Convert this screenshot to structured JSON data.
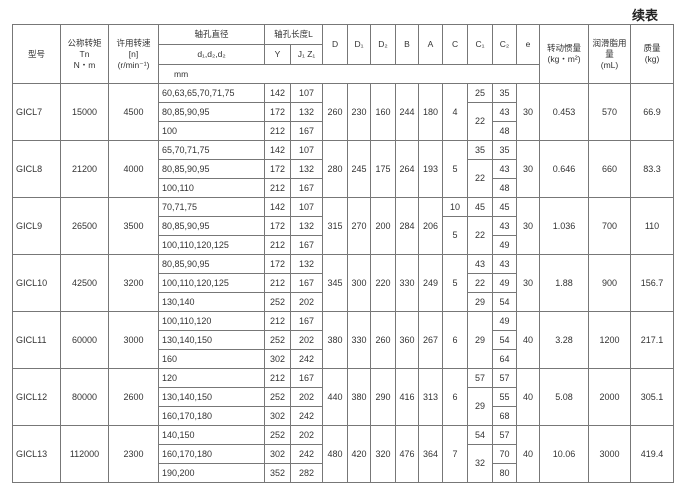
{
  "caption": "续表",
  "header": {
    "model": "型号",
    "torque": [
      "公称转矩",
      "Tn",
      "N・m"
    ],
    "speed": [
      "许用转速",
      "[n]",
      "(r/min⁻¹)"
    ],
    "bore_diameter": "轴孔直径",
    "bore_diameter_sub": "d₁,d₂,d₂",
    "bore_length": "轴孔长度L",
    "bore_length_y": "Y",
    "bore_length_jz": "J₁ Z₁",
    "dims": [
      "D",
      "D₁",
      "D₂",
      "B",
      "A",
      "C",
      "C₁",
      "C₂",
      "e"
    ],
    "unit_mm": "mm",
    "inertia": [
      "转动惯量",
      "(kg・m²)"
    ],
    "grease": [
      "润滑脂用量",
      "(mL)"
    ],
    "mass": [
      "质量",
      "(kg)"
    ]
  },
  "rows": [
    {
      "model": "GⅠCL7",
      "torque": "15000",
      "speed": "4500",
      "bores": [
        "60,63,65,70,71,75",
        "80,85,90,95",
        "100"
      ],
      "Y": [
        "142",
        "172",
        "212"
      ],
      "JZ": [
        "107",
        "132",
        "167"
      ],
      "D": "260",
      "D1": "230",
      "D2": "160",
      "B": "244",
      "A": "180",
      "C": [
        "4"
      ],
      "C1": [
        "25",
        "22"
      ],
      "C2": [
        "35",
        "43",
        "48"
      ],
      "e": "30",
      "inertia": "0.453",
      "grease": "570",
      "mass": "66.9"
    },
    {
      "model": "GⅠCL8",
      "torque": "21200",
      "speed": "4000",
      "bores": [
        "65,70,71,75",
        "80,85,90,95",
        "100,110"
      ],
      "Y": [
        "142",
        "172",
        "212"
      ],
      "JZ": [
        "107",
        "132",
        "167"
      ],
      "D": "280",
      "D1": "245",
      "D2": "175",
      "B": "264",
      "A": "193",
      "C": [
        "5"
      ],
      "C1": [
        "35",
        "22"
      ],
      "C2": [
        "35",
        "43",
        "48"
      ],
      "e": "30",
      "inertia": "0.646",
      "grease": "660",
      "mass": "83.3"
    },
    {
      "model": "GⅠCL9",
      "torque": "26500",
      "speed": "3500",
      "bores": [
        "70,71,75",
        "80,85,90,95",
        "100,110,120,125"
      ],
      "Y": [
        "142",
        "172",
        "212"
      ],
      "JZ": [
        "107",
        "132",
        "167"
      ],
      "D": "315",
      "D1": "270",
      "D2": "200",
      "B": "284",
      "A": "206",
      "C": [
        "10",
        "5"
      ],
      "C1": [
        "45",
        "22"
      ],
      "C2": [
        "45",
        "43",
        "49"
      ],
      "e": "30",
      "inertia": "1.036",
      "grease": "700",
      "mass": "110"
    },
    {
      "model": "GⅠCL10",
      "torque": "42500",
      "speed": "3200",
      "bores": [
        "80,85,90,95",
        "100,110,120,125",
        "130,140"
      ],
      "Y": [
        "172",
        "212",
        "252"
      ],
      "JZ": [
        "132",
        "167",
        "202"
      ],
      "D": "345",
      "D1": "300",
      "D2": "220",
      "B": "330",
      "A": "249",
      "C": [
        "5"
      ],
      "C1": [
        "43",
        "22",
        "29"
      ],
      "C2": [
        "43",
        "49",
        "54"
      ],
      "e": "30",
      "inertia": "1.88",
      "grease": "900",
      "mass": "156.7"
    },
    {
      "model": "GⅠCL11",
      "torque": "60000",
      "speed": "3000",
      "bores": [
        "100,110,120",
        "130,140,150",
        "160"
      ],
      "Y": [
        "212",
        "252",
        "302"
      ],
      "JZ": [
        "167",
        "202",
        "242"
      ],
      "D": "380",
      "D1": "330",
      "D2": "260",
      "B": "360",
      "A": "267",
      "C": [
        "6"
      ],
      "C1": [
        "29"
      ],
      "C2": [
        "49",
        "54",
        "64"
      ],
      "e": "40",
      "inertia": "3.28",
      "grease": "1200",
      "mass": "217.1"
    },
    {
      "model": "GⅠCL12",
      "torque": "80000",
      "speed": "2600",
      "bores": [
        "120",
        "130,140,150",
        "160,170,180"
      ],
      "Y": [
        "212",
        "252",
        "302"
      ],
      "JZ": [
        "167",
        "202",
        "242"
      ],
      "D": "440",
      "D1": "380",
      "D2": "290",
      "B": "416",
      "A": "313",
      "C": [
        "6"
      ],
      "C1": [
        "57",
        "29"
      ],
      "C2": [
        "57",
        "55",
        "68"
      ],
      "e": "40",
      "inertia": "5.08",
      "grease": "2000",
      "mass": "305.1"
    },
    {
      "model": "GⅠCL13",
      "torque": "112000",
      "speed": "2300",
      "bores": [
        "140,150",
        "160,170,180",
        "190,200"
      ],
      "Y": [
        "252",
        "302",
        "352"
      ],
      "JZ": [
        "202",
        "242",
        "282"
      ],
      "D": "480",
      "D1": "420",
      "D2": "320",
      "B": "476",
      "A": "364",
      "C": [
        "7"
      ],
      "C1": [
        "54",
        "32"
      ],
      "C2": [
        "57",
        "70",
        "80"
      ],
      "e": "40",
      "inertia": "10.06",
      "grease": "3000",
      "mass": "419.4"
    }
  ]
}
